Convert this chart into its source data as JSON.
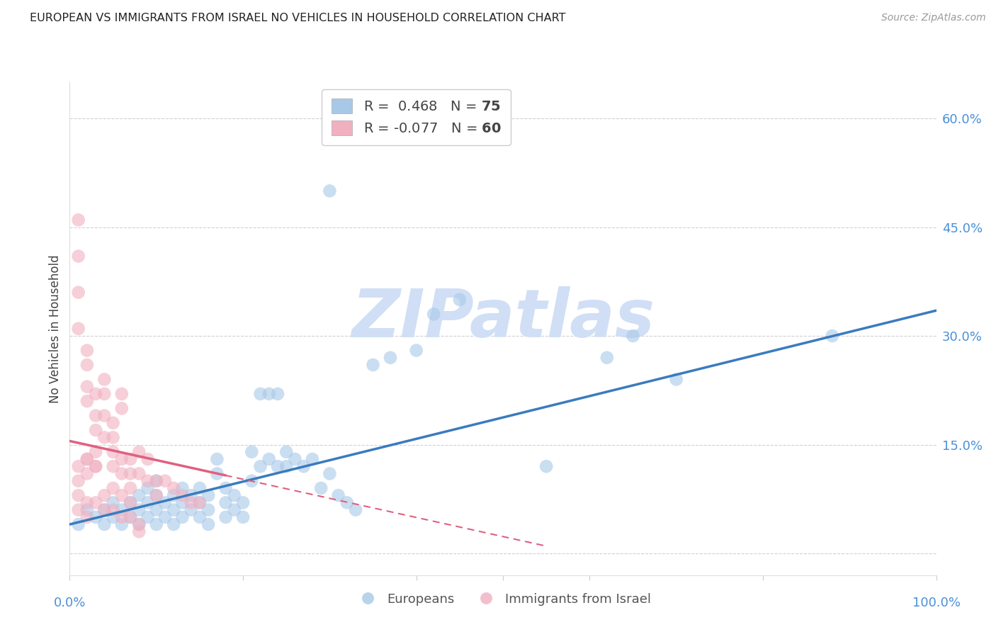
{
  "title": "EUROPEAN VS IMMIGRANTS FROM ISRAEL NO VEHICLES IN HOUSEHOLD CORRELATION CHART",
  "source": "Source: ZipAtlas.com",
  "ylabel": "No Vehicles in Household",
  "y_ticks": [
    0.0,
    0.15,
    0.3,
    0.45,
    0.6
  ],
  "y_tick_labels": [
    "",
    "15.0%",
    "30.0%",
    "45.0%",
    "60.0%"
  ],
  "x_range": [
    0.0,
    1.0
  ],
  "y_range": [
    -0.03,
    0.65
  ],
  "blue_R": 0.468,
  "blue_N": 75,
  "pink_R": -0.077,
  "pink_N": 60,
  "blue_color": "#a8c8e8",
  "pink_color": "#f0b0c0",
  "blue_line_color": "#3a7bbf",
  "pink_line_color": "#e06080",
  "watermark": "ZIPatlas",
  "watermark_color": "#d0dff5",
  "background_color": "#ffffff",
  "grid_color": "#cccccc",
  "tick_color": "#4a90d9",
  "title_color": "#222222",
  "legend_labels": [
    "Europeans",
    "Immigrants from Israel"
  ],
  "blue_line_x0": 0.0,
  "blue_line_y0": 0.04,
  "blue_line_x1": 1.0,
  "blue_line_y1": 0.335,
  "pink_line_x0": 0.0,
  "pink_line_y0": 0.155,
  "pink_line_x1": 0.55,
  "pink_line_y1": 0.01,
  "blue_scatter_x": [
    0.01,
    0.02,
    0.03,
    0.04,
    0.04,
    0.05,
    0.05,
    0.06,
    0.06,
    0.07,
    0.07,
    0.08,
    0.08,
    0.08,
    0.09,
    0.09,
    0.09,
    0.1,
    0.1,
    0.1,
    0.1,
    0.11,
    0.11,
    0.12,
    0.12,
    0.12,
    0.13,
    0.13,
    0.13,
    0.14,
    0.14,
    0.15,
    0.15,
    0.15,
    0.16,
    0.16,
    0.16,
    0.17,
    0.17,
    0.18,
    0.18,
    0.18,
    0.19,
    0.19,
    0.2,
    0.2,
    0.21,
    0.21,
    0.22,
    0.22,
    0.23,
    0.23,
    0.24,
    0.24,
    0.25,
    0.25,
    0.26,
    0.27,
    0.28,
    0.29,
    0.3,
    0.31,
    0.32,
    0.33,
    0.35,
    0.37,
    0.4,
    0.42,
    0.55,
    0.62,
    0.65,
    0.7,
    0.88,
    0.3,
    0.45
  ],
  "blue_scatter_y": [
    0.04,
    0.06,
    0.05,
    0.04,
    0.06,
    0.05,
    0.07,
    0.04,
    0.06,
    0.05,
    0.07,
    0.04,
    0.06,
    0.08,
    0.05,
    0.07,
    0.09,
    0.04,
    0.06,
    0.08,
    0.1,
    0.05,
    0.07,
    0.04,
    0.06,
    0.08,
    0.05,
    0.07,
    0.09,
    0.06,
    0.08,
    0.05,
    0.07,
    0.09,
    0.04,
    0.06,
    0.08,
    0.11,
    0.13,
    0.05,
    0.07,
    0.09,
    0.06,
    0.08,
    0.05,
    0.07,
    0.14,
    0.1,
    0.12,
    0.22,
    0.13,
    0.22,
    0.12,
    0.22,
    0.12,
    0.14,
    0.13,
    0.12,
    0.13,
    0.09,
    0.11,
    0.08,
    0.07,
    0.06,
    0.26,
    0.27,
    0.28,
    0.33,
    0.12,
    0.27,
    0.3,
    0.24,
    0.3,
    0.5,
    0.35
  ],
  "pink_scatter_x": [
    0.01,
    0.01,
    0.01,
    0.01,
    0.02,
    0.02,
    0.02,
    0.02,
    0.02,
    0.03,
    0.03,
    0.03,
    0.03,
    0.03,
    0.04,
    0.04,
    0.04,
    0.04,
    0.05,
    0.05,
    0.05,
    0.05,
    0.06,
    0.06,
    0.06,
    0.06,
    0.07,
    0.07,
    0.07,
    0.08,
    0.08,
    0.09,
    0.09,
    0.1,
    0.1,
    0.11,
    0.12,
    0.13,
    0.14,
    0.15,
    0.01,
    0.01,
    0.02,
    0.02,
    0.03,
    0.04,
    0.05,
    0.06,
    0.07,
    0.08,
    0.01,
    0.01,
    0.02,
    0.02,
    0.03,
    0.04,
    0.05,
    0.06,
    0.07,
    0.08
  ],
  "pink_scatter_y": [
    0.46,
    0.41,
    0.36,
    0.31,
    0.28,
    0.26,
    0.23,
    0.21,
    0.13,
    0.22,
    0.19,
    0.17,
    0.14,
    0.12,
    0.24,
    0.22,
    0.19,
    0.16,
    0.18,
    0.16,
    0.14,
    0.12,
    0.22,
    0.2,
    0.13,
    0.11,
    0.13,
    0.11,
    0.09,
    0.14,
    0.11,
    0.13,
    0.1,
    0.1,
    0.08,
    0.1,
    0.09,
    0.08,
    0.07,
    0.07,
    0.12,
    0.1,
    0.13,
    0.11,
    0.12,
    0.08,
    0.09,
    0.08,
    0.07,
    0.04,
    0.08,
    0.06,
    0.07,
    0.05,
    0.07,
    0.06,
    0.06,
    0.05,
    0.05,
    0.03
  ]
}
